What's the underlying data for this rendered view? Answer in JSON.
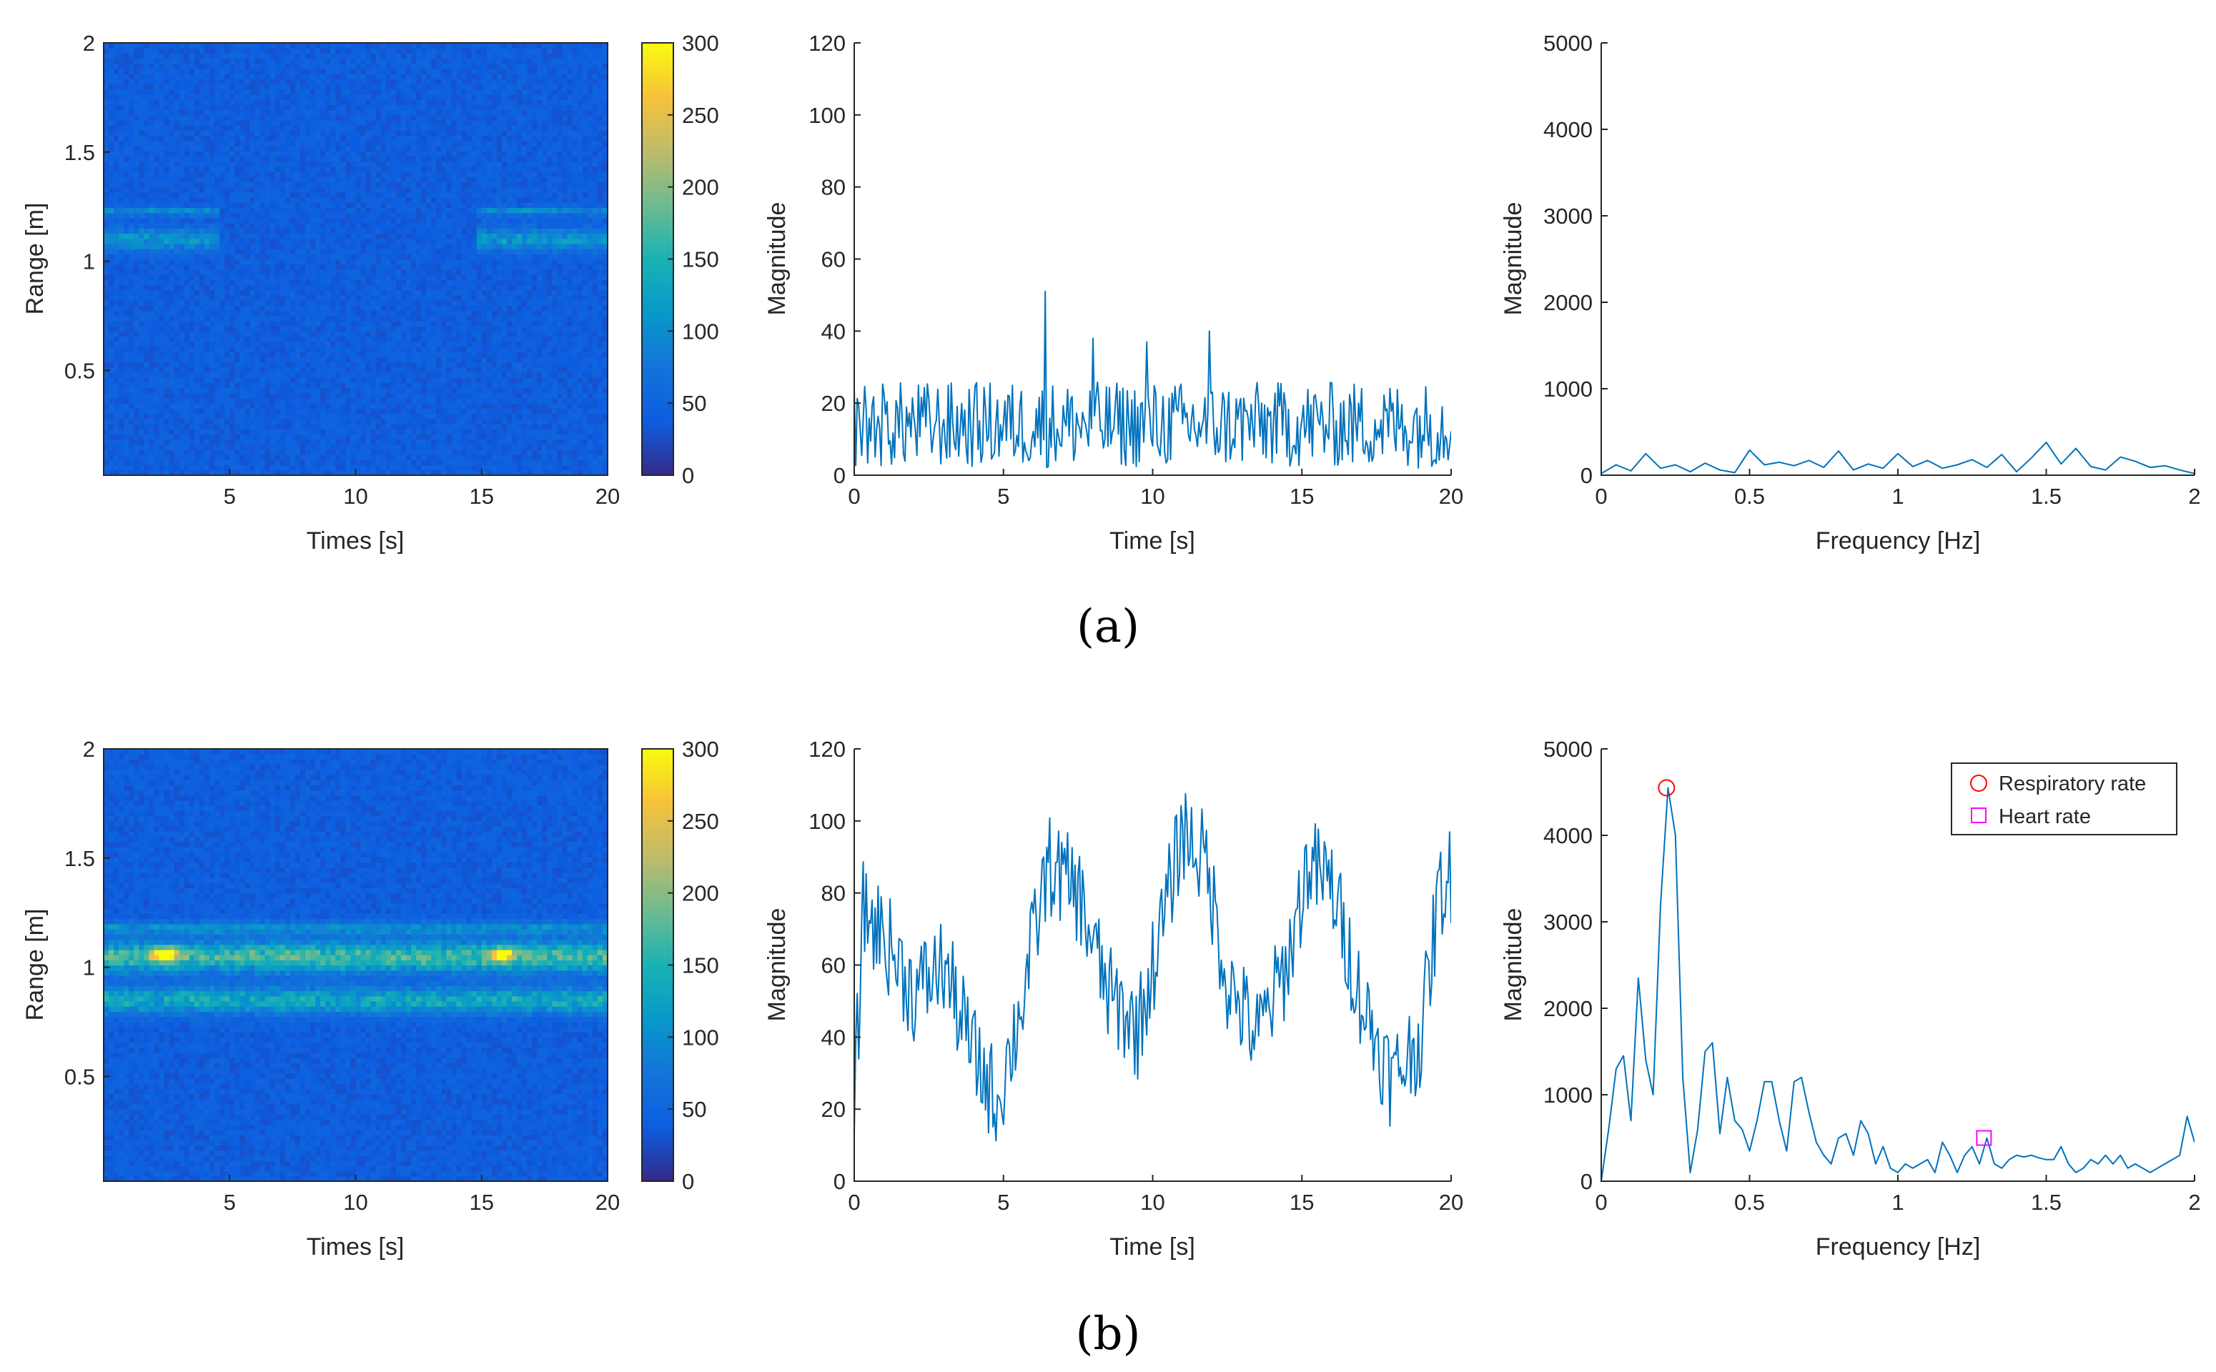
{
  "captions": {
    "a": "(a)",
    "b": "(b)"
  },
  "colors": {
    "line": "#0072BD",
    "respiratory": "#FF0000",
    "heart": "#FF00FF",
    "axis": "#262626"
  },
  "colorbar": {
    "ticks": [
      0,
      50,
      100,
      150,
      200,
      250,
      300
    ],
    "range": [
      0,
      300
    ],
    "colormap": "parula"
  },
  "chart_data": [
    {
      "id": "a-heatmap",
      "type": "heatmap",
      "xlabel": "Times [s]",
      "ylabel": "Range [m]",
      "xlim": [
        0,
        20
      ],
      "ylim": [
        0.02,
        2
      ],
      "xticks": [
        5,
        10,
        15,
        20
      ],
      "yticks": [
        0.5,
        1,
        1.5,
        2
      ],
      "clim": [
        0,
        300
      ],
      "bands": [
        {
          "center": 1.1,
          "width": 0.05,
          "level": 70,
          "t_ranges": [
            [
              0,
              4.5
            ],
            [
              14.8,
              20
            ]
          ]
        },
        {
          "center": 1.23,
          "width": 0.02,
          "level": 55,
          "t_ranges": [
            [
              0,
              4.5
            ],
            [
              14.8,
              20
            ]
          ]
        }
      ],
      "noise_level": [
        28,
        52
      ]
    },
    {
      "id": "a-time",
      "type": "line",
      "xlabel": "Time [s]",
      "ylabel": "Magnitude",
      "xlim": [
        0,
        20
      ],
      "ylim": [
        0,
        120
      ],
      "xticks": [
        0,
        5,
        10,
        15,
        20
      ],
      "yticks": [
        0,
        20,
        40,
        60,
        80,
        100,
        120
      ],
      "signal": {
        "points": 400,
        "baseline": 14,
        "noise_amplitude": 12,
        "peaks": [
          [
            6.4,
            51
          ],
          [
            11.9,
            40
          ],
          [
            8.0,
            38
          ],
          [
            9.8,
            37
          ]
        ]
      }
    },
    {
      "id": "a-spectrum",
      "type": "line",
      "xlabel": "Frequency [Hz]",
      "ylabel": "Magnitude",
      "xlim": [
        0,
        2
      ],
      "ylim": [
        0,
        5000
      ],
      "xticks": [
        0,
        0.5,
        1,
        1.5,
        2
      ],
      "yticks": [
        0,
        1000,
        2000,
        3000,
        4000,
        5000
      ],
      "x": [
        0,
        0.05,
        0.1,
        0.15,
        0.2,
        0.25,
        0.3,
        0.35,
        0.4,
        0.45,
        0.5,
        0.55,
        0.6,
        0.65,
        0.7,
        0.75,
        0.8,
        0.85,
        0.9,
        0.95,
        1.0,
        1.05,
        1.1,
        1.15,
        1.2,
        1.25,
        1.3,
        1.35,
        1.4,
        1.45,
        1.5,
        1.55,
        1.6,
        1.65,
        1.7,
        1.75,
        1.8,
        1.85,
        1.9,
        1.95,
        2.0
      ],
      "y": [
        20,
        120,
        50,
        250,
        80,
        120,
        40,
        140,
        60,
        30,
        290,
        120,
        150,
        110,
        170,
        90,
        280,
        60,
        130,
        80,
        250,
        100,
        170,
        80,
        120,
        180,
        90,
        240,
        40,
        200,
        380,
        130,
        310,
        100,
        60,
        210,
        160,
        90,
        110,
        60,
        20
      ]
    },
    {
      "id": "b-heatmap",
      "type": "heatmap",
      "xlabel": "Times [s]",
      "ylabel": "Range [m]",
      "xlim": [
        0,
        20
      ],
      "ylim": [
        0.02,
        2
      ],
      "xticks": [
        5,
        10,
        15,
        20
      ],
      "yticks": [
        0.5,
        1,
        1.5,
        2
      ],
      "clim": [
        0,
        300
      ],
      "bands": [
        {
          "center": 1.05,
          "width": 0.07,
          "level": 125,
          "t_ranges": [
            [
              0,
              20
            ]
          ]
        },
        {
          "center": 0.85,
          "width": 0.06,
          "level": 95,
          "t_ranges": [
            [
              0,
              20
            ]
          ]
        },
        {
          "center": 1.18,
          "width": 0.03,
          "level": 60,
          "t_ranges": [
            [
              0,
              20
            ]
          ]
        }
      ],
      "hotspots": [
        {
          "t": 2.4,
          "r": 1.06,
          "level": 250
        },
        {
          "t": 15.8,
          "r": 1.06,
          "level": 215
        }
      ],
      "noise_level": [
        28,
        52
      ]
    },
    {
      "id": "b-time",
      "type": "line",
      "xlabel": "Time [s]",
      "ylabel": "Magnitude",
      "xlim": [
        0,
        20
      ],
      "ylim": [
        0,
        120
      ],
      "xticks": [
        0,
        5,
        10,
        15,
        20
      ],
      "yticks": [
        0,
        20,
        40,
        60,
        80,
        100,
        120
      ],
      "envelope_x": [
        0,
        0.3,
        1,
        2,
        3,
        4,
        4.8,
        5.5,
        6.5,
        7.5,
        8.5,
        9.5,
        10.3,
        11,
        11.8,
        12.5,
        13.5,
        14.5,
        15.2,
        16,
        17,
        18,
        19,
        19.6,
        20
      ],
      "envelope_y": [
        20,
        75,
        68,
        52,
        60,
        35,
        22,
        45,
        88,
        80,
        52,
        42,
        70,
        98,
        88,
        55,
        40,
        60,
        88,
        82,
        50,
        28,
        40,
        80,
        85
      ],
      "signal": {
        "points": 400,
        "noise_amplitude": 14
      }
    },
    {
      "id": "b-spectrum",
      "type": "line",
      "xlabel": "Frequency [Hz]",
      "ylabel": "Magnitude",
      "xlim": [
        0,
        2
      ],
      "ylim": [
        0,
        5000
      ],
      "xticks": [
        0,
        0.5,
        1,
        1.5,
        2
      ],
      "yticks": [
        0,
        1000,
        2000,
        3000,
        4000,
        5000
      ],
      "x": [
        0,
        0.025,
        0.05,
        0.075,
        0.1,
        0.125,
        0.15,
        0.175,
        0.2,
        0.225,
        0.25,
        0.275,
        0.3,
        0.325,
        0.35,
        0.375,
        0.4,
        0.425,
        0.45,
        0.475,
        0.5,
        0.525,
        0.55,
        0.575,
        0.6,
        0.625,
        0.65,
        0.675,
        0.7,
        0.725,
        0.75,
        0.775,
        0.8,
        0.825,
        0.85,
        0.875,
        0.9,
        0.925,
        0.95,
        0.975,
        1.0,
        1.025,
        1.05,
        1.075,
        1.1,
        1.125,
        1.15,
        1.175,
        1.2,
        1.225,
        1.25,
        1.275,
        1.3,
        1.325,
        1.35,
        1.375,
        1.4,
        1.425,
        1.45,
        1.475,
        1.5,
        1.525,
        1.55,
        1.575,
        1.6,
        1.625,
        1.65,
        1.675,
        1.7,
        1.725,
        1.75,
        1.775,
        1.8,
        1.825,
        1.85,
        1.875,
        1.9,
        1.925,
        1.95,
        1.975,
        2.0
      ],
      "y": [
        0,
        600,
        1300,
        1450,
        700,
        2350,
        1400,
        1000,
        3200,
        4550,
        4000,
        1200,
        100,
        600,
        1500,
        1600,
        550,
        1200,
        700,
        600,
        350,
        700,
        1150,
        1150,
        700,
        350,
        1150,
        1200,
        800,
        450,
        300,
        200,
        500,
        550,
        300,
        700,
        550,
        200,
        400,
        150,
        100,
        200,
        150,
        200,
        250,
        100,
        450,
        300,
        100,
        300,
        400,
        200,
        500,
        200,
        150,
        250,
        300,
        280,
        300,
        270,
        250,
        250,
        400,
        200,
        100,
        150,
        250,
        200,
        300,
        200,
        300,
        150,
        200,
        150,
        100,
        150,
        200,
        250,
        300,
        750,
        450
      ],
      "markers": [
        {
          "name": "Respiratory rate",
          "shape": "circle",
          "x": 0.22,
          "y": 4550
        },
        {
          "name": "Heart rate",
          "shape": "square",
          "x": 1.29,
          "y": 500
        }
      ],
      "legend": {
        "placement": "top-right",
        "entries": [
          "Respiratory rate",
          "Heart rate"
        ]
      }
    }
  ]
}
